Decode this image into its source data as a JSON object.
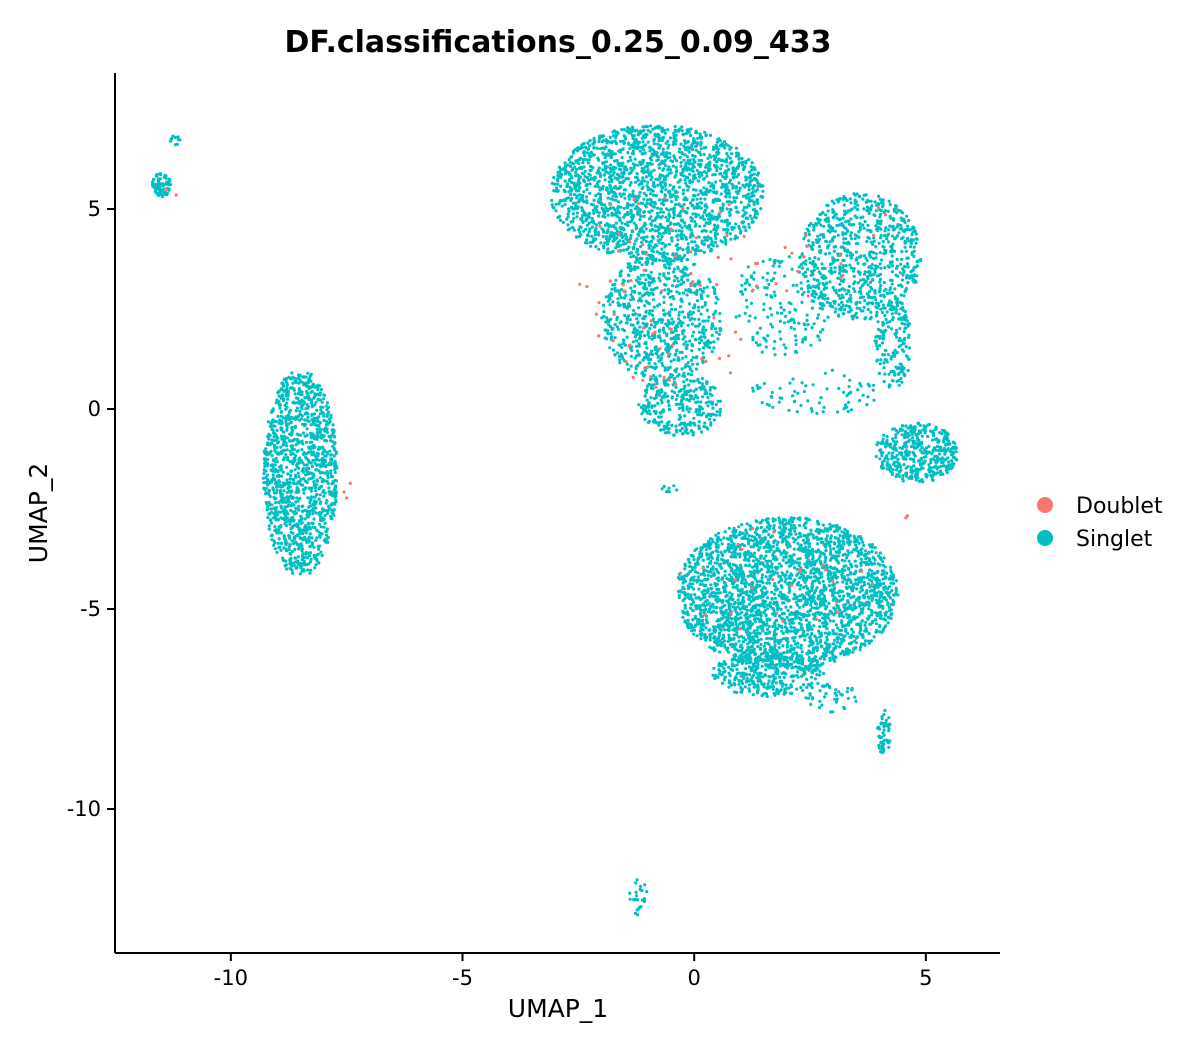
{
  "chart_data": {
    "type": "scatter",
    "title": "DF.classifications_0.25_0.09_433",
    "xlabel": "UMAP_1",
    "ylabel": "UMAP_2",
    "xlim": [
      -12.5,
      6.6
    ],
    "ylim": [
      -13.6,
      8.4
    ],
    "xticks": [
      -10,
      -5,
      0,
      5
    ],
    "yticks": [
      -10,
      -5,
      0,
      5
    ],
    "grid": false,
    "legend_position": "right",
    "series": [
      {
        "name": "Doublet",
        "color": "#F8766D",
        "clusters": [
          {
            "cx": -0.5,
            "cy": 3.0,
            "rx": 2.0,
            "ry": 2.8,
            "n": 70
          },
          {
            "cx": 2.6,
            "cy": 3.6,
            "rx": 1.4,
            "ry": 0.8,
            "n": 14
          },
          {
            "cx": 4.0,
            "cy": 4.6,
            "rx": 0.3,
            "ry": 0.5,
            "n": 3
          },
          {
            "cx": 1.8,
            "cy": -4.3,
            "rx": 2.2,
            "ry": 1.4,
            "n": 25
          },
          {
            "cx": -11.3,
            "cy": 5.4,
            "rx": 0.15,
            "ry": 0.2,
            "n": 2
          },
          {
            "cx": -7.5,
            "cy": -2.0,
            "rx": 0.1,
            "ry": 0.3,
            "n": 3
          },
          {
            "cx": 4.6,
            "cy": -2.6,
            "rx": 0.1,
            "ry": 0.15,
            "n": 2
          }
        ]
      },
      {
        "name": "Singlet",
        "color": "#00BFC4",
        "clusters": [
          {
            "cx": -0.8,
            "cy": 5.4,
            "rx": 2.3,
            "ry": 1.7,
            "n": 1900
          },
          {
            "cx": -0.7,
            "cy": 2.3,
            "rx": 1.3,
            "ry": 1.6,
            "n": 700
          },
          {
            "cx": -0.3,
            "cy": 0.1,
            "rx": 0.9,
            "ry": 0.8,
            "n": 300
          },
          {
            "cx": 3.6,
            "cy": 3.8,
            "rx": 1.3,
            "ry": 1.6,
            "n": 750
          },
          {
            "cx": 4.3,
            "cy": 1.6,
            "rx": 0.4,
            "ry": 1.1,
            "n": 160
          },
          {
            "cx": 1.9,
            "cy": 2.6,
            "rx": 1.1,
            "ry": 1.3,
            "n": 180
          },
          {
            "cx": 2.6,
            "cy": 0.4,
            "rx": 1.4,
            "ry": 0.6,
            "n": 70
          },
          {
            "cx": 4.8,
            "cy": -1.1,
            "rx": 0.9,
            "ry": 0.75,
            "n": 420
          },
          {
            "cx": 2.0,
            "cy": -4.6,
            "rx": 2.4,
            "ry": 1.9,
            "n": 2700
          },
          {
            "cx": 1.6,
            "cy": -6.6,
            "rx": 1.2,
            "ry": 0.6,
            "n": 350
          },
          {
            "cx": 4.1,
            "cy": -8.1,
            "rx": 0.15,
            "ry": 0.6,
            "n": 50
          },
          {
            "cx": 3.0,
            "cy": -7.2,
            "rx": 0.6,
            "ry": 0.4,
            "n": 40
          },
          {
            "cx": -8.5,
            "cy": -1.6,
            "rx": 0.8,
            "ry": 2.6,
            "n": 1250
          },
          {
            "cx": -11.5,
            "cy": 5.6,
            "rx": 0.2,
            "ry": 0.3,
            "n": 80
          },
          {
            "cx": -11.2,
            "cy": 6.7,
            "rx": 0.1,
            "ry": 0.15,
            "n": 10
          },
          {
            "cx": -1.2,
            "cy": -12.2,
            "rx": 0.2,
            "ry": 0.5,
            "n": 25
          },
          {
            "cx": -0.5,
            "cy": -2.0,
            "rx": 0.2,
            "ry": 0.1,
            "n": 8
          }
        ]
      }
    ]
  }
}
